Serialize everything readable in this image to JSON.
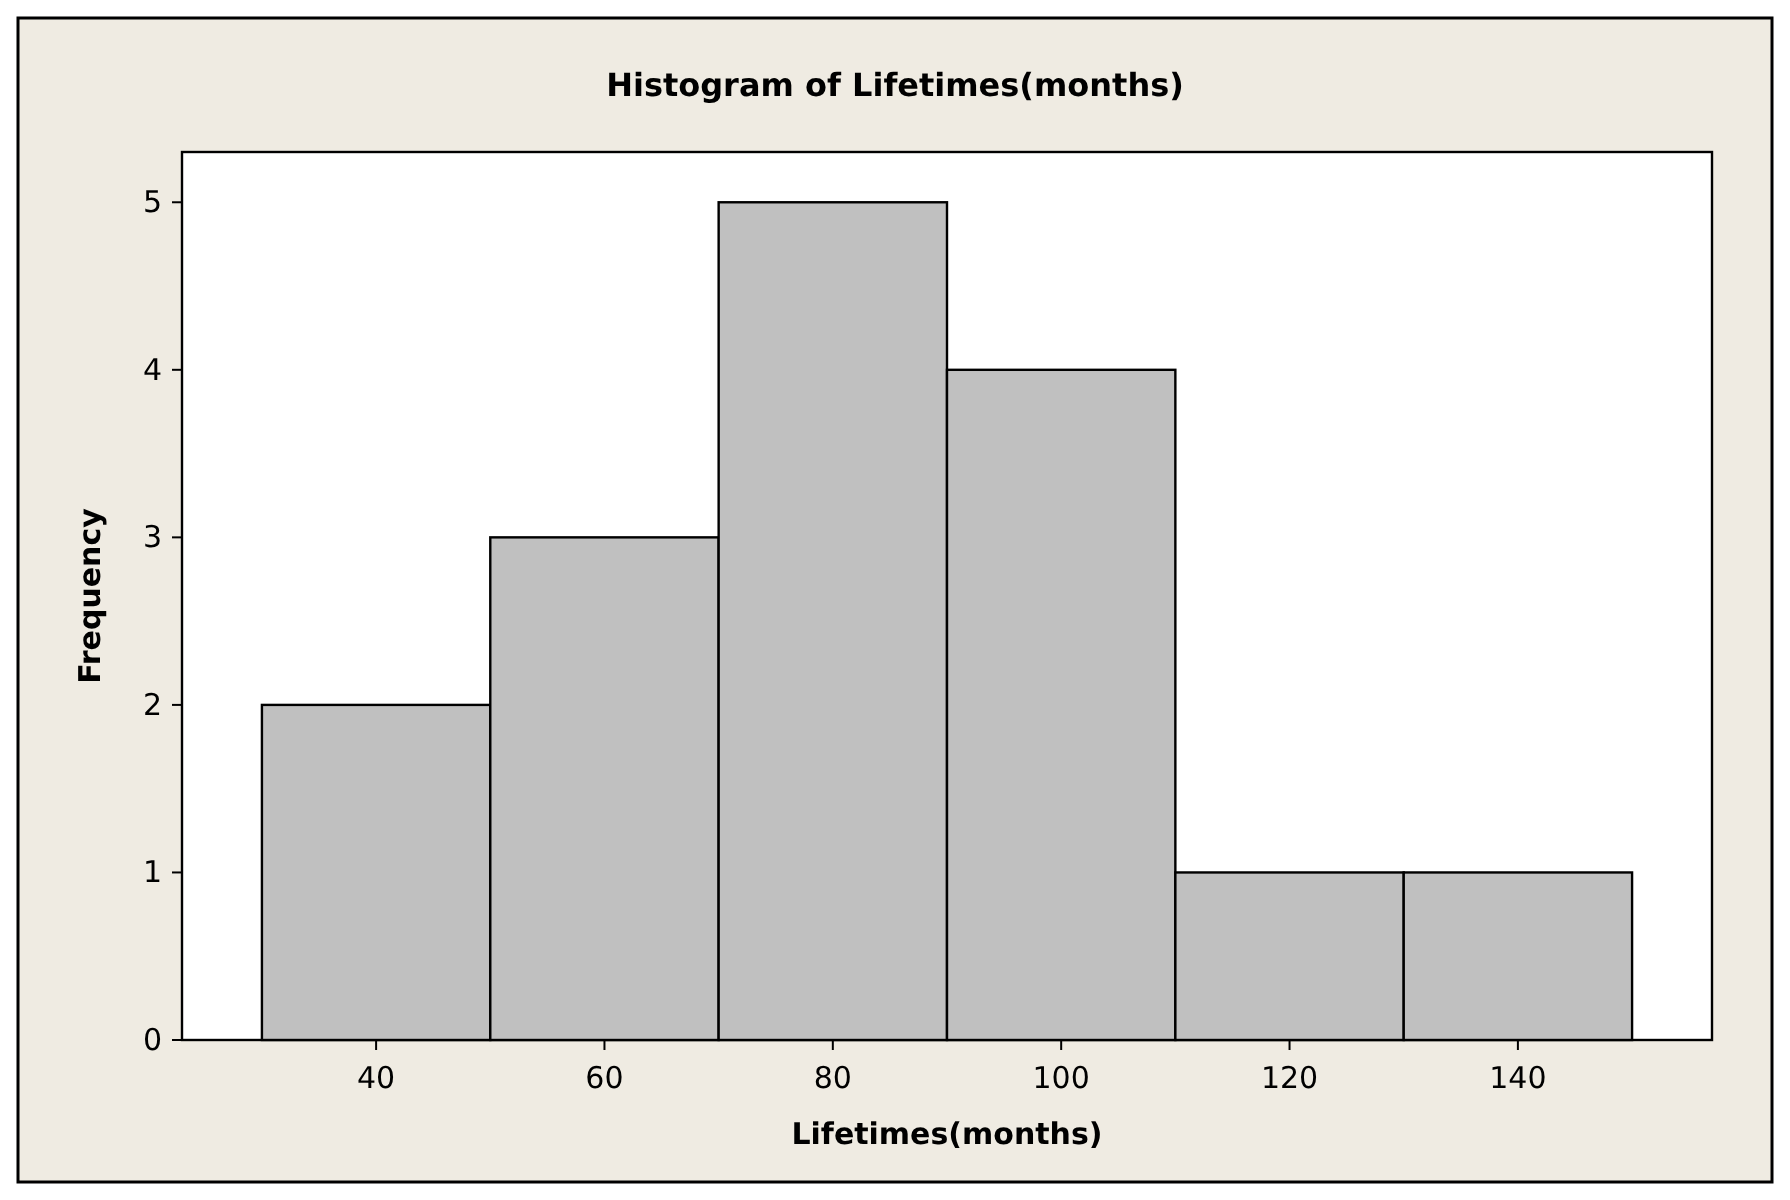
{
  "chart_data": {
    "type": "histogram",
    "title": "Histogram of Lifetimes(months)",
    "xlabel": "Lifetimes(months)",
    "ylabel": "Frequency",
    "bins": [
      30,
      50,
      70,
      90,
      110,
      130,
      150
    ],
    "values": [
      2,
      3,
      5,
      4,
      1,
      1
    ],
    "color": "#c0c0c0",
    "xlim": [
      23,
      157
    ],
    "xticks": [
      40,
      60,
      80,
      100,
      120,
      140
    ],
    "ylim": [
      0,
      5.3
    ],
    "yticks": [
      0,
      1,
      2,
      3,
      4,
      5
    ],
    "grid": false
  }
}
